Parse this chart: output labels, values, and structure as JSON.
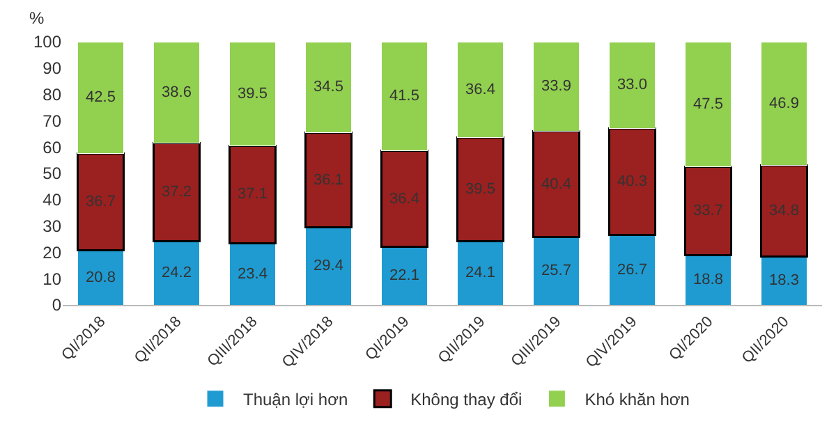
{
  "chart_data": {
    "type": "bar",
    "stacked": true,
    "ylabel": "%",
    "categories": [
      "QI/2018",
      "QII/2018",
      "QIII/2018",
      "QIV/2018",
      "QI/2019",
      "QII/2019",
      "QIII/2019",
      "QIV/2019",
      "QI/2020",
      "QII/2020"
    ],
    "series": [
      {
        "name": "Thuận lợi hơn",
        "color": "#1f9bd1",
        "values": [
          20.8,
          24.2,
          23.4,
          29.4,
          22.1,
          24.1,
          25.7,
          26.7,
          18.8,
          18.3
        ],
        "value_labels": [
          "20.8",
          "24.2",
          "23.4",
          "29.4",
          "22.1",
          "24.1",
          "25.7",
          "26.7",
          "18.8",
          "18.3"
        ]
      },
      {
        "name": "Không thay đổi",
        "color": "#9b2020",
        "values": [
          36.7,
          37.2,
          37.1,
          36.1,
          36.4,
          39.5,
          40.4,
          40.3,
          33.7,
          34.8
        ],
        "value_labels": [
          "36.7",
          "37.2",
          "37.1",
          "36.1",
          "36.4",
          "39.5",
          "40.4",
          "40.3",
          "33.7",
          "34.8"
        ]
      },
      {
        "name": "Khó khăn hơn",
        "color": "#92d050",
        "values": [
          42.5,
          38.6,
          39.5,
          34.5,
          41.5,
          36.4,
          33.9,
          33.0,
          47.5,
          46.9
        ],
        "value_labels": [
          "42.5",
          "38.6",
          "39.5",
          "34.5",
          "41.5",
          "36.4",
          "33.9",
          "33.0",
          "47.5",
          "46.9"
        ]
      }
    ],
    "ylim": [
      0,
      100
    ],
    "yticks": [
      0,
      10,
      20,
      30,
      40,
      50,
      60,
      70,
      80,
      90,
      100
    ],
    "legend": "bottom"
  }
}
